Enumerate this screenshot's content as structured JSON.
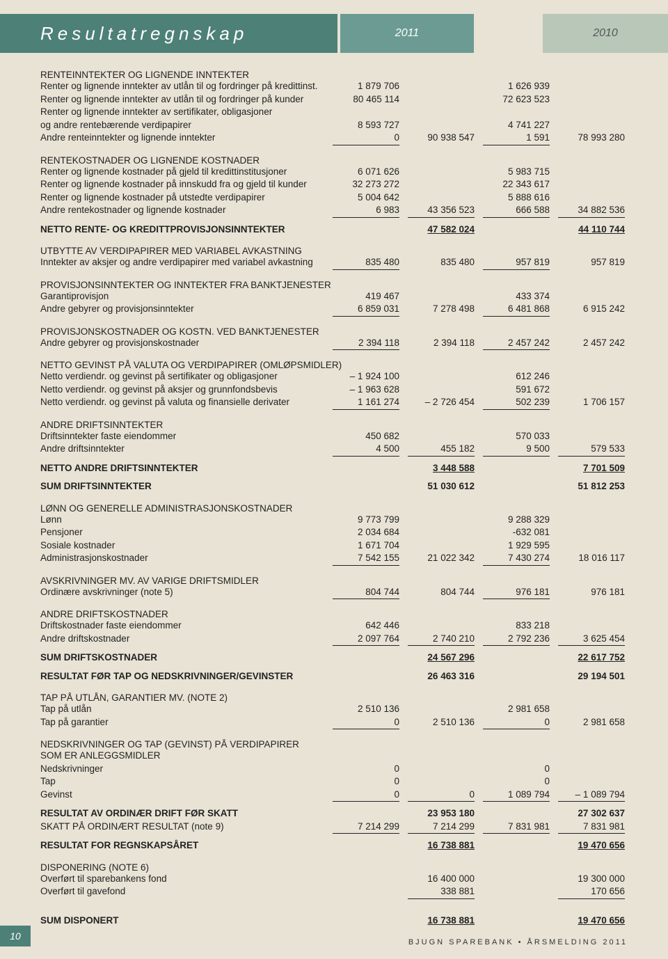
{
  "header": {
    "title": "Resultatregnskap",
    "year1": "2011",
    "year2": "2010"
  },
  "footer": {
    "page": "10",
    "text": "BJUGN SPAREBANK • ÅRSMELDING 2011"
  },
  "sections": [
    {
      "title": "RENTEINNTEKTER OG LIGNENDE INNTEKTER",
      "rows": [
        {
          "label": "Renter og lignende inntekter av utlån til og fordringer på kredittinst.",
          "a": "1 879 706",
          "b": "",
          "c": "1 626 939",
          "d": ""
        },
        {
          "label": "Renter og lignende inntekter av utlån til og fordringer på kunder",
          "a": "80 465 114",
          "b": "",
          "c": "72 623 523",
          "d": ""
        },
        {
          "label": "Renter og lignende inntekter av sertifikater, obligasjoner",
          "a": "",
          "b": "",
          "c": "",
          "d": ""
        },
        {
          "label": "og andre rentebærende verdipapirer",
          "a": "8 593 727",
          "b": "",
          "c": "4 741 227",
          "d": ""
        },
        {
          "label": "Andre renteinntekter og lignende inntekter",
          "a": "0",
          "b": "90 938 547",
          "c": "1 591",
          "d": "78 993 280",
          "ul": [
            "a",
            "c"
          ]
        }
      ]
    },
    {
      "title": "RENTEKOSTNADER OG LIGNENDE KOSTNADER",
      "rows": [
        {
          "label": "Renter og lignende kostnader på gjeld til kredittinstitusjoner",
          "a": "6 071 626",
          "b": "",
          "c": "5 983 715",
          "d": ""
        },
        {
          "label": "Renter og lignende kostnader på innskudd fra og gjeld til kunder",
          "a": "32 273 272",
          "b": "",
          "c": "22 343 617",
          "d": ""
        },
        {
          "label": "Renter og lignende kostnader på utstedte verdipapirer",
          "a": "5 004 642",
          "b": "",
          "c": "5 888 616",
          "d": ""
        },
        {
          "label": "Andre rentekostnader og lignende kostnader",
          "a": "6 983",
          "b": "43 356 523",
          "c": "666 588",
          "d": "34 882 536",
          "ul": [
            "a",
            "b",
            "c",
            "d"
          ]
        }
      ]
    },
    {
      "boldrow": {
        "label": "NETTO RENTE- OG KREDITTPROVISJONSINNTEKTER",
        "b": "47 582 024",
        "d": "44 110 744",
        "bu": true
      }
    },
    {
      "title": "UTBYTTE AV VERDIPAPIRER MED VARIABEL AVKASTNING",
      "rows": [
        {
          "label": "Inntekter av aksjer og andre verdipapirer med variabel avkastning",
          "a": "835 480",
          "b": "835 480",
          "c": "957 819",
          "d": "957 819",
          "ul": [
            "a",
            "c"
          ]
        }
      ]
    },
    {
      "title": "PROVISJONSINNTEKTER OG INNTEKTER FRA BANKTJENESTER",
      "rows": [
        {
          "label": "Garantiprovisjon",
          "a": "419 467",
          "b": "",
          "c": "433 374",
          "d": ""
        },
        {
          "label": "Andre gebyrer og provisjonsinntekter",
          "a": "6 859 031",
          "b": "7 278 498",
          "c": "6 481 868",
          "d": "6 915 242",
          "ul": [
            "a",
            "c"
          ]
        }
      ]
    },
    {
      "title": "PROVISJONSKOSTNADER OG KOSTN. VED BANKTJENESTER",
      "rows": [
        {
          "label": "Andre gebyrer og provisjonskostnader",
          "a": "2 394 118",
          "b": "2 394 118",
          "c": "2 457 242",
          "d": "2 457 242",
          "ul": [
            "a",
            "c"
          ]
        }
      ]
    },
    {
      "title": "NETTO GEVINST PÅ VALUTA OG VERDIPAPIRER (OMLØPSMIDLER)",
      "rows": [
        {
          "label": "Netto verdiendr. og gevinst på sertifikater og obligasjoner",
          "a": "– 1 924 100",
          "b": "",
          "c": "612 246",
          "d": ""
        },
        {
          "label": "Netto verdiendr. og gevinst på aksjer og grunnfondsbevis",
          "a": "– 1 963 628",
          "b": "",
          "c": "591 672",
          "d": ""
        },
        {
          "label": "Netto verdiendr. og gevinst på valuta og finansielle derivater",
          "a": "1 161 274",
          "b": "– 2 726 454",
          "c": "502 239",
          "d": "1 706 157",
          "ul": [
            "a",
            "c"
          ]
        }
      ]
    },
    {
      "title": "ANDRE DRIFTSINNTEKTER",
      "rows": [
        {
          "label": "Driftsinntekter faste eiendommer",
          "a": "450 682",
          "b": "",
          "c": "570 033",
          "d": ""
        },
        {
          "label": "Andre driftsinntekter",
          "a": "4 500",
          "b": "455 182",
          "c": "9 500",
          "d": "579 533",
          "ul": [
            "a",
            "b",
            "c",
            "d"
          ]
        }
      ]
    },
    {
      "boldrow": {
        "label": "NETTO ANDRE DRIFTSINNTEKTER",
        "b": "3 448 588",
        "d": "7 701 509",
        "bu": true
      }
    },
    {
      "boldrow": {
        "label": "SUM DRIFTSINNTEKTER",
        "b": "51 030 612",
        "d": "51 812 253"
      }
    },
    {
      "title": "LØNN OG GENERELLE ADMINISTRASJONSKOSTNADER",
      "rows": [
        {
          "label": "Lønn",
          "a": "9 773 799",
          "b": "",
          "c": "9 288 329",
          "d": ""
        },
        {
          "label": "Pensjoner",
          "a": "2 034 684",
          "b": "",
          "c": "-632 081",
          "d": ""
        },
        {
          "label": "Sosiale kostnader",
          "a": "1 671 704",
          "b": "",
          "c": "1 929 595",
          "d": ""
        },
        {
          "label": "Administrasjonskostnader",
          "a": "7 542 155",
          "b": "21 022 342",
          "c": "7 430 274",
          "d": "18 016 117",
          "ul": [
            "a",
            "c"
          ]
        }
      ]
    },
    {
      "title": "AVSKRIVNINGER MV. AV VARIGE DRIFTSMIDLER",
      "rows": [
        {
          "label": "Ordinære avskrivninger (note 5)",
          "a": "804 744",
          "b": "804 744",
          "c": "976 181",
          "d": "976 181",
          "ul": [
            "a",
            "c"
          ]
        }
      ]
    },
    {
      "title": "ANDRE DRIFTSKOSTNADER",
      "rows": [
        {
          "label": "Driftskostnader faste eiendommer",
          "a": "642 446",
          "b": "",
          "c": "833 218",
          "d": ""
        },
        {
          "label": "Andre driftskostnader",
          "a": "2 097 764",
          "b": "2 740 210",
          "c": "2 792 236",
          "d": "3 625 454",
          "ul": [
            "a",
            "b",
            "c",
            "d"
          ]
        }
      ]
    },
    {
      "boldrow": {
        "label": "SUM DRIFTSKOSTNADER",
        "b": "24 567 296",
        "d": "22 617 752",
        "bu": true
      }
    },
    {
      "boldrow": {
        "label": "RESULTAT FØR TAP OG NEDSKRIVNINGER/GEVINSTER",
        "b": "26 463 316",
        "d": "29 194 501"
      }
    },
    {
      "title": "TAP PÅ UTLÅN, GARANTIER MV. (note 2)",
      "rows": [
        {
          "label": "Tap på utlån",
          "a": "2 510 136",
          "b": "",
          "c": "2 981 658",
          "d": ""
        },
        {
          "label": "Tap på garantier",
          "a": "0",
          "b": "2 510 136",
          "c": "0",
          "d": "2 981 658",
          "ul": [
            "a",
            "c"
          ]
        }
      ]
    },
    {
      "title": "NEDSKRIVNINGER OG TAP (GEVINST) PÅ VERDIPAPIRER",
      "subtitle": "SOM ER ANLEGGSMIDLER",
      "rows": [
        {
          "label": "Nedskrivninger",
          "a": "0",
          "b": "",
          "c": "0",
          "d": ""
        },
        {
          "label": "Tap",
          "a": "0",
          "b": "",
          "c": "0",
          "d": ""
        },
        {
          "label": "Gevinst",
          "a": "0",
          "b": "0",
          "c": "1 089 794",
          "d": "– 1 089 794",
          "ul": [
            "a",
            "b",
            "c",
            "d"
          ]
        }
      ]
    },
    {
      "boldrow": {
        "label": "RESULTAT AV ORDINÆR DRIFT FØR SKATT",
        "b": "23 953 180",
        "d": "27 302 637"
      }
    },
    {
      "rows": [
        {
          "label": "SKATT PÅ ORDINÆRT RESULTAT (note 9)",
          "a": "7 214 299",
          "b": "7 214 299",
          "c": "7 831 981",
          "d": "7 831 981",
          "ul": [
            "a",
            "b",
            "c",
            "d"
          ]
        }
      ]
    },
    {
      "boldrow": {
        "label": "RESULTAT FOR REGNSKAPSÅRET",
        "b": "16 738 881",
        "d": "19 470 656",
        "bu": true
      }
    },
    {
      "title": "DISPONERING (note 6)",
      "rows": [
        {
          "label": "Overført til sparebankens fond",
          "a": "",
          "b": "16 400 000",
          "c": "",
          "d": "19 300 000"
        },
        {
          "label": "Overført til gavefond",
          "a": "",
          "b": "338 881",
          "c": "",
          "d": "170 656",
          "ul": [
            "b",
            "d"
          ]
        }
      ]
    },
    {
      "boldrow": {
        "label": "SUM DISPONERT",
        "b": "16 738 881",
        "d": "19 470 656",
        "bu": true,
        "extraspace": true
      }
    }
  ]
}
